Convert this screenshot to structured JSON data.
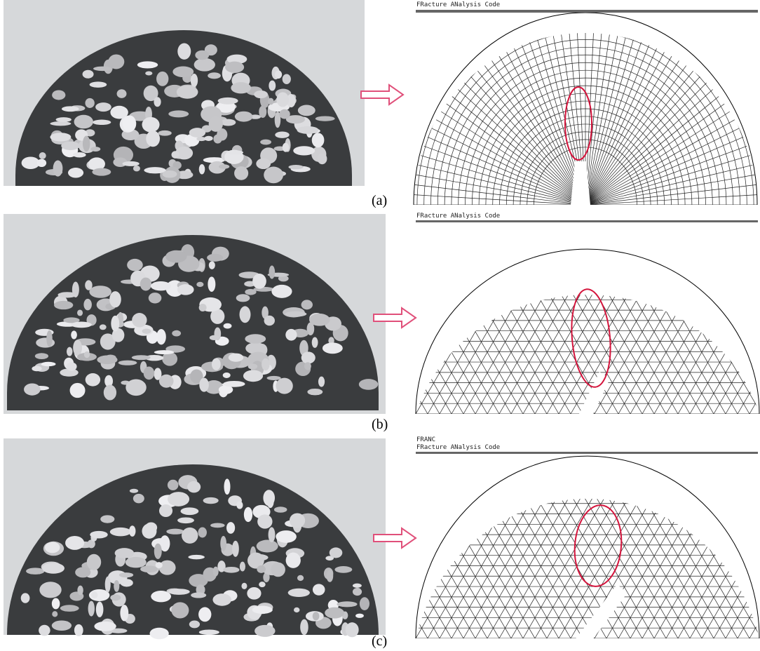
{
  "panels": [
    {
      "label": "(a)",
      "header": "FRacture ANalysis Code"
    },
    {
      "label": "(b)",
      "header": "FRacture ANalysis Code"
    },
    {
      "label": "(c)",
      "program": "FRANC",
      "header": "FRacture ANalysis Code"
    }
  ]
}
